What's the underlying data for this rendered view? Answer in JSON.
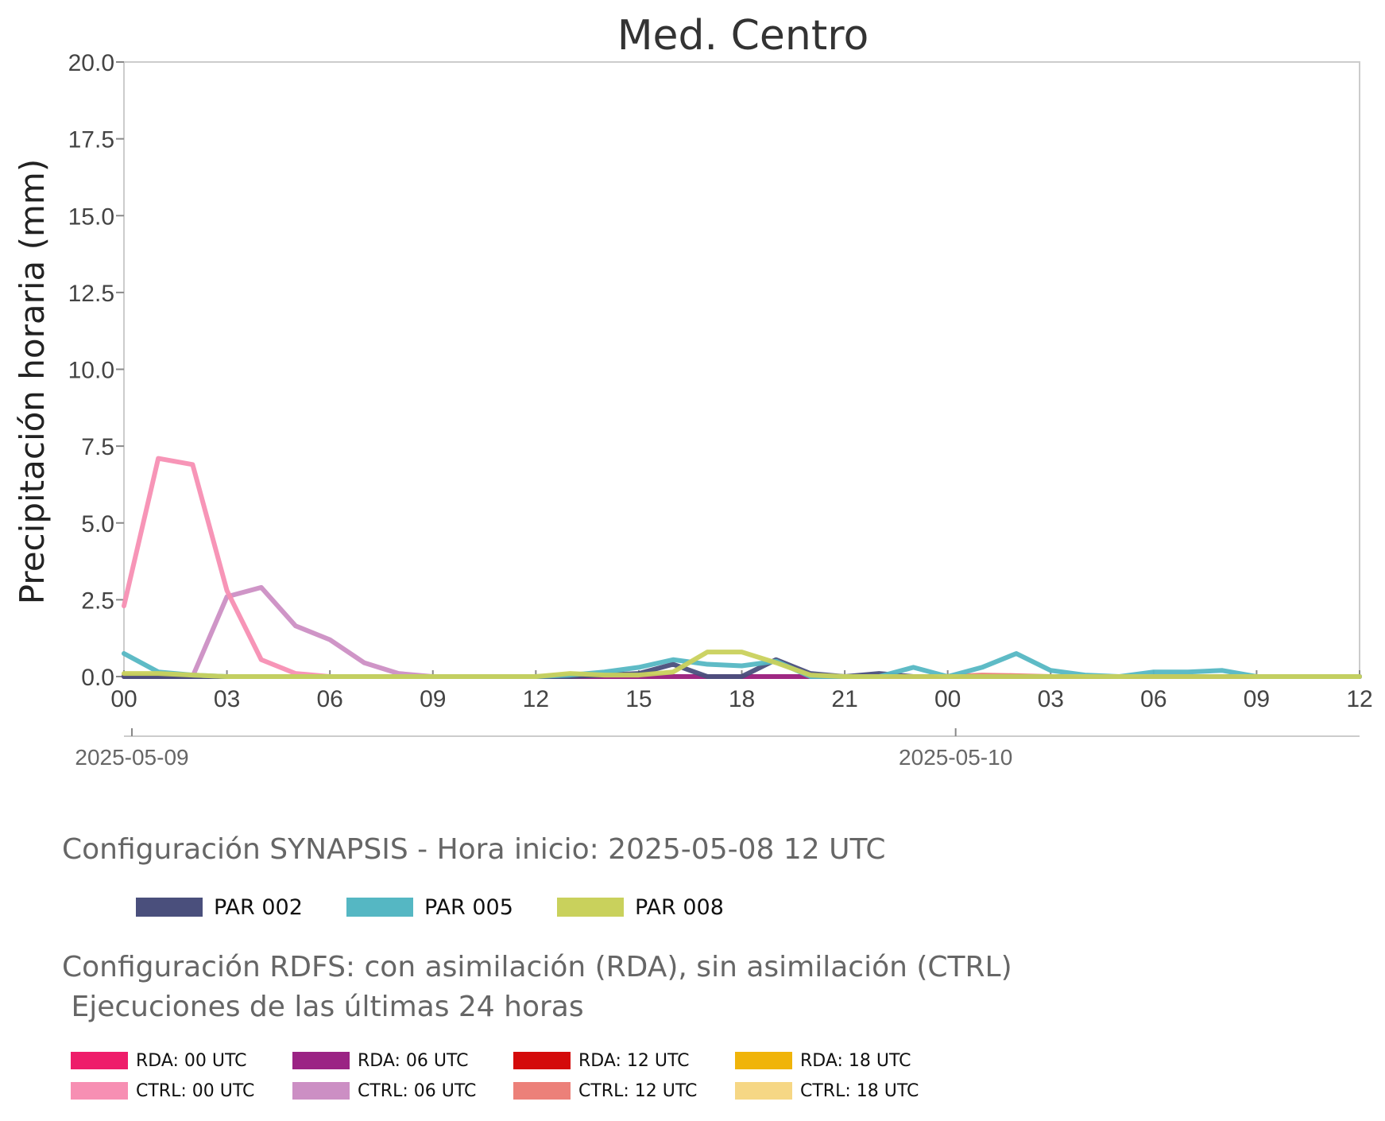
{
  "chart_data": {
    "type": "line",
    "title": "Med. Centro",
    "ylabel": "Precipitación horaria (mm)",
    "xlabel": "",
    "ylim": [
      0,
      20
    ],
    "yticks": [
      "0.0",
      "2.5",
      "5.0",
      "7.5",
      "10.0",
      "12.5",
      "15.0",
      "17.5",
      "20.0"
    ],
    "x_start": "2025-05-09 00 UTC",
    "x_end": "2025-05-10 12 UTC",
    "xticks": [
      "00",
      "03",
      "06",
      "09",
      "12",
      "15",
      "18",
      "21",
      "00",
      "03",
      "06",
      "09",
      "12"
    ],
    "date_labels": [
      "2025-05-09",
      "2025-05-10"
    ],
    "grid": false,
    "series": [
      {
        "name": "CTRL: 06 UTC",
        "color": "#cc8fc4",
        "values": [
          0.05,
          0.05,
          0.0,
          2.6,
          2.9,
          1.65,
          1.2,
          0.45,
          0.1,
          0.0,
          0.0,
          0.0,
          0.0,
          0.0,
          0.0,
          0.0,
          0.0,
          0.0,
          0.0,
          0.0,
          0.0,
          0.0,
          0.0,
          0.0,
          0.0,
          0.0,
          0.0,
          0.0,
          0.0,
          0.0,
          0.0,
          0.0,
          0.0,
          0.0,
          0.0,
          0.0,
          0.0
        ]
      },
      {
        "name": "CTRL: 00 UTC",
        "color": "#f78fb3",
        "values": [
          2.3,
          7.1,
          6.9,
          2.8,
          0.55,
          0.1,
          0.0,
          0.0,
          0.0,
          0.0,
          0.0,
          0.0,
          0.0,
          0.0,
          0.0,
          0.0,
          0.0,
          0.0,
          0.0,
          0.0,
          0.0,
          0.0,
          0.0,
          0.0,
          0.0,
          0.0,
          0.0,
          0.0,
          0.0,
          0.0,
          0.0,
          0.0,
          0.0,
          0.0,
          0.0,
          0.0,
          0.0
        ]
      },
      {
        "name": "CTRL: 12 UTC",
        "color": "#ec8079",
        "values": [
          0.0,
          0.0,
          0.0,
          0.0,
          0.0,
          0.0,
          0.0,
          0.0,
          0.0,
          0.0,
          0.0,
          0.0,
          0.0,
          0.0,
          0.0,
          0.0,
          0.0,
          0.0,
          0.0,
          0.0,
          0.0,
          0.0,
          0.0,
          0.0,
          0.0,
          0.05,
          0.03,
          0.0,
          0.0,
          0.0,
          0.0,
          0.0,
          0.0,
          0.0,
          0.0,
          0.0,
          0.0
        ]
      },
      {
        "name": "RDA: 06 UTC",
        "color": "#9b2384",
        "values": [
          0.0,
          0.0,
          0.0,
          0.0,
          0.0,
          0.0,
          0.0,
          0.0,
          0.0,
          0.0,
          0.0,
          0.0,
          0.0,
          0.0,
          0.0,
          0.0,
          0.0,
          0.0,
          0.0,
          0.0,
          0.0,
          0.0,
          0.0,
          0.0,
          0.0,
          0.0,
          0.0,
          0.0,
          0.0,
          0.0,
          0.0,
          0.0,
          0.0,
          0.0,
          0.0,
          0.0,
          0.0
        ]
      },
      {
        "name": "PAR 002",
        "color": "#4a4f7c",
        "values": [
          0.0,
          0.0,
          0.0,
          0.0,
          0.0,
          0.0,
          0.0,
          0.0,
          0.0,
          0.0,
          0.0,
          0.0,
          0.0,
          0.0,
          0.05,
          0.1,
          0.4,
          0.0,
          0.0,
          0.55,
          0.1,
          0.0,
          0.1,
          0.0,
          0.0,
          0.0,
          0.0,
          0.0,
          0.0,
          0.0,
          0.0,
          0.0,
          0.0,
          0.0,
          0.0,
          0.0,
          0.0
        ]
      },
      {
        "name": "PAR 005",
        "color": "#55b7c3",
        "values": [
          0.75,
          0.15,
          0.05,
          0.0,
          0.0,
          0.0,
          0.0,
          0.0,
          0.0,
          0.0,
          0.0,
          0.0,
          0.0,
          0.05,
          0.15,
          0.3,
          0.55,
          0.4,
          0.35,
          0.5,
          0.0,
          0.0,
          0.0,
          0.3,
          0.0,
          0.3,
          0.75,
          0.2,
          0.05,
          0.0,
          0.15,
          0.15,
          0.2,
          0.0,
          0.0,
          0.0,
          0.0
        ]
      },
      {
        "name": "PAR 008",
        "color": "#c9d15c",
        "values": [
          0.1,
          0.1,
          0.05,
          0.0,
          0.0,
          0.0,
          0.0,
          0.0,
          0.0,
          0.0,
          0.0,
          0.0,
          0.0,
          0.1,
          0.05,
          0.05,
          0.15,
          0.8,
          0.8,
          0.45,
          0.05,
          0.0,
          0.0,
          0.0,
          0.0,
          0.0,
          0.0,
          0.0,
          0.0,
          0.0,
          0.0,
          0.0,
          0.0,
          0.0,
          0.0,
          0.0,
          0.0
        ]
      }
    ]
  },
  "legend_synapsis": {
    "title": "Configuración SYNAPSIS - Hora inicio: 2025-05-08 12 UTC",
    "items": [
      {
        "label": "PAR 002",
        "color": "#4a4f7c"
      },
      {
        "label": "PAR 005",
        "color": "#55b7c3"
      },
      {
        "label": "PAR 008",
        "color": "#c9d15c"
      }
    ]
  },
  "legend_rdfs": {
    "title_line1": "Configuración RDFS: con asimilación (RDA), sin asimilación (CTRL)",
    "title_line2": " Ejecuciones de las últimas 24 horas",
    "items": [
      {
        "label": "RDA: 00 UTC",
        "color": "#ee1d6a"
      },
      {
        "label": "CTRL: 00 UTC",
        "color": "#f78fb3"
      },
      {
        "label": "RDA: 06 UTC",
        "color": "#9b2384"
      },
      {
        "label": "CTRL: 06 UTC",
        "color": "#cc8fc4"
      },
      {
        "label": "RDA: 12 UTC",
        "color": "#d40b0b"
      },
      {
        "label": "CTRL: 12 UTC",
        "color": "#ec8079"
      },
      {
        "label": "RDA: 18 UTC",
        "color": "#f0b40a"
      },
      {
        "label": "CTRL: 18 UTC",
        "color": "#f6d785"
      }
    ]
  }
}
